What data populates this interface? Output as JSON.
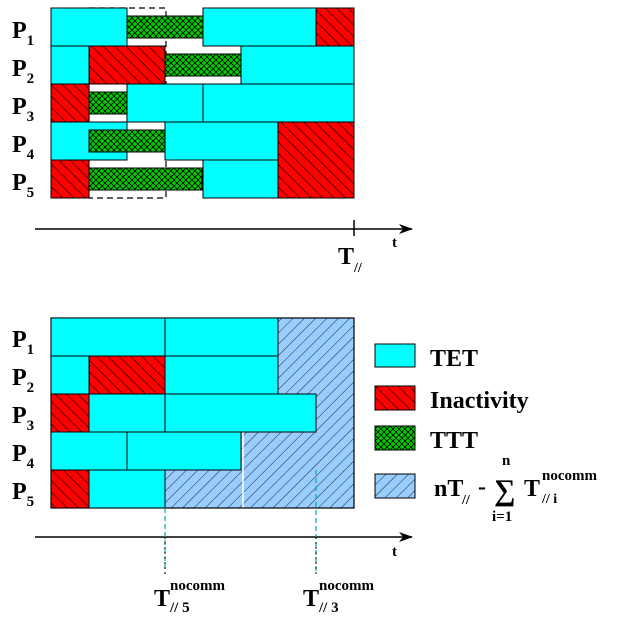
{
  "colors": {
    "tet": "#00ffff",
    "inactivity": "#ff0000",
    "ttt": "#00cc00",
    "surplus": "#99ccff",
    "outline": "#000000",
    "guide": "#00aaaa"
  },
  "top_diagram": {
    "processors": [
      {
        "name": "P",
        "index": "1"
      },
      {
        "name": "P",
        "index": "2"
      },
      {
        "name": "P",
        "index": "3"
      },
      {
        "name": "P",
        "index": "4"
      },
      {
        "name": "P",
        "index": "5"
      }
    ],
    "axis_label": "t",
    "marker": {
      "symbol": "T",
      "subscript": "//"
    }
  },
  "bottom_diagram": {
    "processors": [
      {
        "name": "P",
        "index": "1"
      },
      {
        "name": "P",
        "index": "2"
      },
      {
        "name": "P",
        "index": "3"
      },
      {
        "name": "P",
        "index": "4"
      },
      {
        "name": "P",
        "index": "5"
      }
    ],
    "axis_label": "t",
    "markers": [
      {
        "symbol": "T",
        "superscript": "nocomm",
        "subscript": "// 5"
      },
      {
        "symbol": "T",
        "superscript": "nocomm",
        "subscript": "// 3"
      }
    ]
  },
  "legend": {
    "tet": "TET",
    "inactivity": "Inactivity",
    "ttt": "TTT",
    "formula": {
      "lead": "nT",
      "lead_sub": "//",
      "minus": "-",
      "sigma": "∑",
      "upper": "n",
      "lower": "i=1",
      "term": "T",
      "term_sup": "nocomm",
      "term_sub": "// i"
    }
  }
}
